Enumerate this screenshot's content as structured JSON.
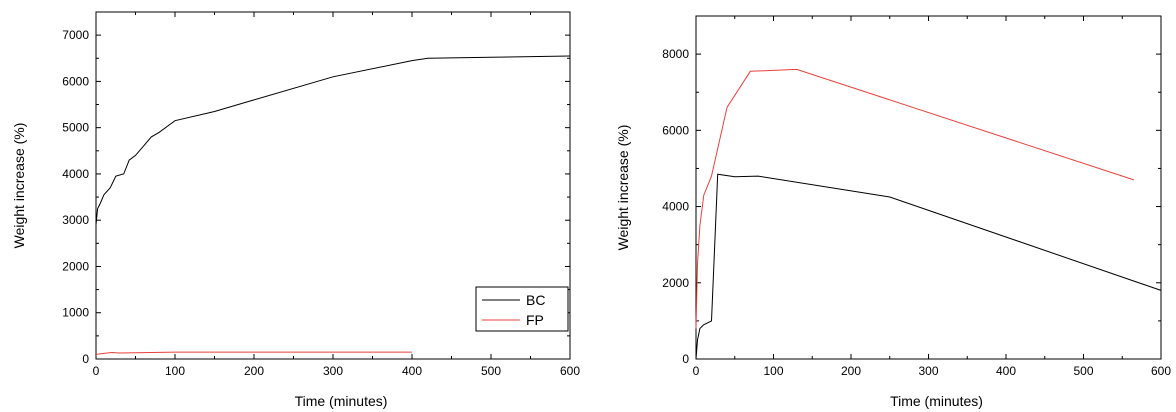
{
  "chart_data": [
    {
      "type": "line",
      "xlabel": "Time (minutes)",
      "ylabel": "Weight increase (%)",
      "xlim": [
        0,
        600
      ],
      "ylim": [
        0,
        7500
      ],
      "xticks": [
        0,
        100,
        200,
        300,
        400,
        500,
        600
      ],
      "yticks": [
        0,
        1000,
        2000,
        3000,
        4000,
        5000,
        6000,
        7000
      ],
      "grid": false,
      "legend": {
        "placement": "bottom-right",
        "entries": [
          "BC",
          "FP"
        ]
      },
      "series": [
        {
          "name": "BC",
          "color": "#000000",
          "x": [
            0,
            2,
            5,
            10,
            18,
            25,
            35,
            42,
            50,
            60,
            70,
            80,
            100,
            150,
            200,
            300,
            400,
            420,
            500,
            600
          ],
          "y": [
            2900,
            3250,
            3350,
            3550,
            3700,
            3950,
            4000,
            4300,
            4400,
            4600,
            4800,
            4900,
            5150,
            5350,
            5600,
            6100,
            6450,
            6500,
            6520,
            6550
          ]
        },
        {
          "name": "FP",
          "color": "#e8413c",
          "x": [
            0,
            5,
            10,
            20,
            30,
            50,
            100,
            200,
            300,
            400
          ],
          "y": [
            100,
            110,
            120,
            140,
            130,
            135,
            150,
            150,
            150,
            150
          ]
        }
      ]
    },
    {
      "type": "line",
      "xlabel": "Time (minutes)",
      "ylabel": "Weight increase (%)",
      "xlim": [
        0,
        600
      ],
      "ylim": [
        0,
        9000
      ],
      "xticks": [
        0,
        100,
        200,
        300,
        400,
        500,
        600
      ],
      "yticks": [
        0,
        2000,
        4000,
        6000,
        8000
      ],
      "grid": false,
      "series": [
        {
          "color": "#e8413c",
          "x": [
            0,
            2,
            5,
            10,
            20,
            40,
            70,
            130,
            565
          ],
          "y": [
            800,
            2500,
            3500,
            4300,
            4800,
            6600,
            7550,
            7600,
            4700
          ]
        },
        {
          "color": "#000000",
          "x": [
            0,
            2,
            5,
            10,
            20,
            28,
            50,
            80,
            250,
            600
          ],
          "y": [
            0,
            500,
            800,
            900,
            1000,
            4850,
            4780,
            4800,
            4250,
            1800
          ]
        }
      ]
    }
  ]
}
